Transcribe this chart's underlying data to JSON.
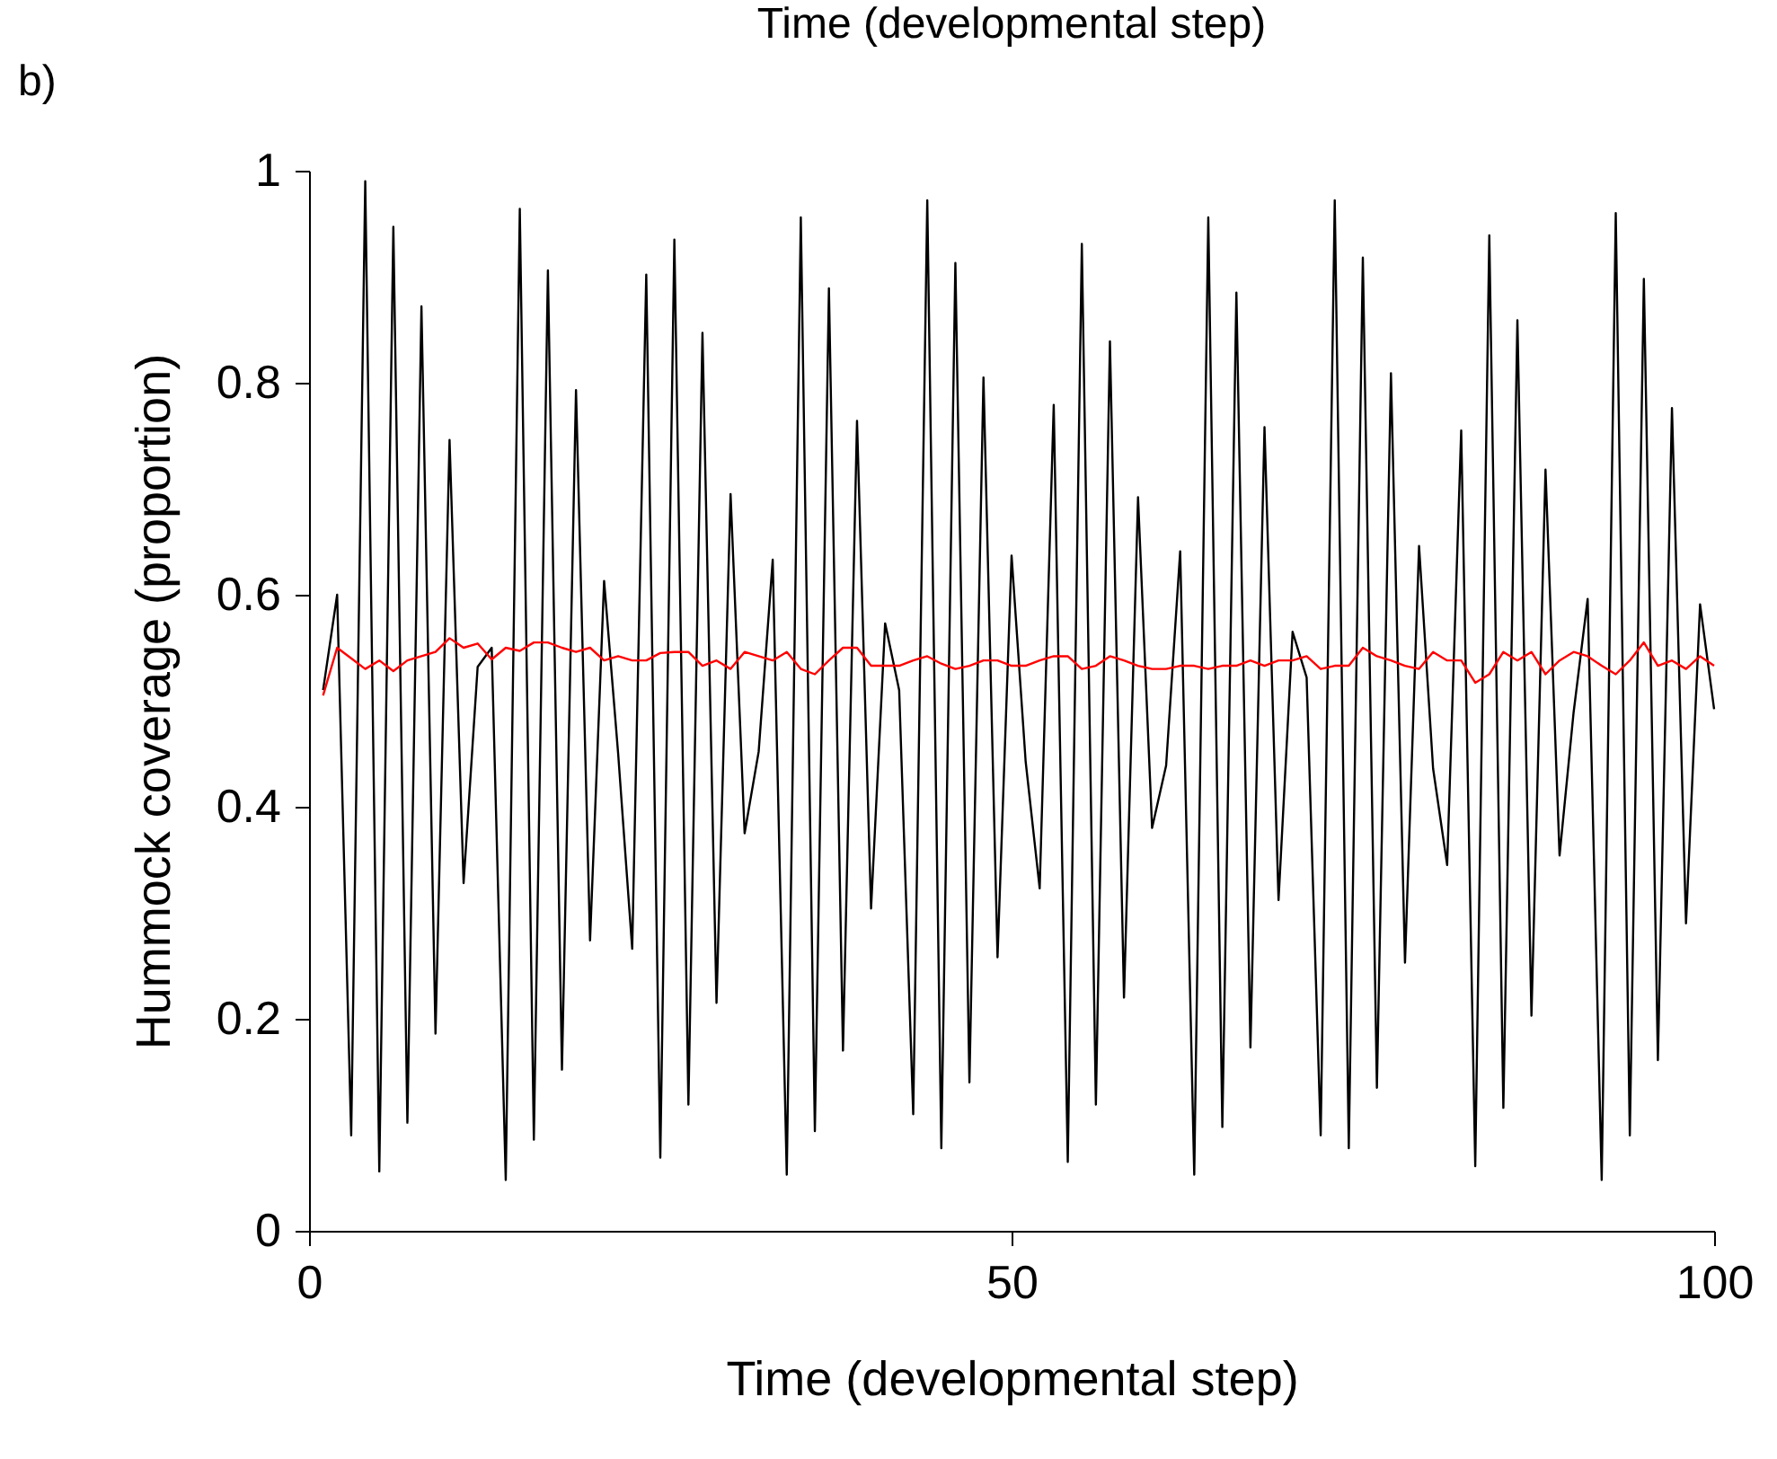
{
  "chart_data": {
    "type": "line",
    "xlabel": "Time (developmental step)",
    "ylabel": "Hummock coverage (proportion)",
    "annotations": [
      "Time (developmental step)",
      "b)"
    ],
    "xlim": [
      0,
      100
    ],
    "xticks": [
      0,
      50,
      100
    ],
    "ylim": [
      0,
      1
    ],
    "yticks": [
      0,
      0.2,
      0.4,
      0.6,
      0.8,
      1
    ],
    "grid": false,
    "legend": false,
    "marker": "none",
    "line_style": "solid",
    "x": [
      1,
      2,
      3,
      4,
      5,
      6,
      7,
      8,
      9,
      10,
      11,
      12,
      13,
      14,
      15,
      16,
      17,
      18,
      19,
      20,
      21,
      22,
      23,
      24,
      25,
      26,
      27,
      28,
      29,
      30,
      31,
      32,
      33,
      34,
      35,
      36,
      37,
      38,
      39,
      40,
      41,
      42,
      43,
      44,
      45,
      46,
      47,
      48,
      49,
      50,
      51,
      52,
      53,
      54,
      55,
      56,
      57,
      58,
      59,
      60,
      61,
      62,
      63,
      64,
      65,
      66,
      67,
      68,
      69,
      70,
      71,
      72,
      73,
      74,
      75,
      76,
      77,
      78,
      79,
      80,
      81,
      82,
      83,
      84,
      85,
      86,
      87,
      88,
      89,
      90,
      91,
      92,
      93,
      94,
      95,
      96,
      97,
      98,
      99,
      100
    ],
    "series": [
      {
        "color": "#000000",
        "values": [
          0.51,
          0.6,
          0.09,
          0.99,
          0.056,
          0.947,
          0.102,
          0.872,
          0.186,
          0.746,
          0.328,
          0.532,
          0.55,
          0.048,
          0.964,
          0.086,
          0.906,
          0.152,
          0.793,
          0.274,
          0.613,
          0.45,
          0.266,
          0.902,
          0.069,
          0.935,
          0.119,
          0.847,
          0.215,
          0.695,
          0.375,
          0.452,
          0.633,
          0.053,
          0.956,
          0.094,
          0.889,
          0.17,
          0.764,
          0.304,
          0.573,
          0.51,
          0.11,
          0.972,
          0.078,
          0.913,
          0.14,
          0.805,
          0.258,
          0.637,
          0.443,
          0.323,
          0.779,
          0.065,
          0.931,
          0.119,
          0.839,
          0.22,
          0.692,
          0.38,
          0.439,
          0.641,
          0.053,
          0.956,
          0.098,
          0.885,
          0.173,
          0.758,
          0.312,
          0.565,
          0.522,
          0.09,
          0.972,
          0.078,
          0.918,
          0.135,
          0.809,
          0.253,
          0.646,
          0.436,
          0.345,
          0.755,
          0.061,
          0.939,
          0.116,
          0.859,
          0.203,
          0.718,
          0.354,
          0.489,
          0.596,
          0.048,
          0.96,
          0.09,
          0.898,
          0.161,
          0.776,
          0.29,
          0.591,
          0.492
        ]
      },
      {
        "color": "#ff0000",
        "values": [
          0.505,
          0.55,
          0.54,
          0.53,
          0.538,
          0.528,
          0.538,
          0.542,
          0.546,
          0.559,
          0.55,
          0.554,
          0.539,
          0.55,
          0.547,
          0.555,
          0.555,
          0.55,
          0.546,
          0.55,
          0.538,
          0.542,
          0.538,
          0.538,
          0.545,
          0.546,
          0.546,
          0.533,
          0.538,
          0.53,
          0.546,
          0.542,
          0.538,
          0.546,
          0.53,
          0.525,
          0.538,
          0.55,
          0.55,
          0.533,
          0.533,
          0.533,
          0.538,
          0.542,
          0.535,
          0.53,
          0.533,
          0.538,
          0.538,
          0.533,
          0.533,
          0.538,
          0.542,
          0.542,
          0.53,
          0.533,
          0.542,
          0.538,
          0.533,
          0.53,
          0.53,
          0.533,
          0.533,
          0.53,
          0.533,
          0.533,
          0.538,
          0.533,
          0.538,
          0.538,
          0.542,
          0.53,
          0.533,
          0.533,
          0.55,
          0.542,
          0.538,
          0.533,
          0.53,
          0.546,
          0.538,
          0.538,
          0.517,
          0.525,
          0.546,
          0.538,
          0.546,
          0.525,
          0.538,
          0.546,
          0.542,
          0.533,
          0.525,
          0.538,
          0.555,
          0.533,
          0.538,
          0.53,
          0.542,
          0.533
        ]
      }
    ]
  }
}
